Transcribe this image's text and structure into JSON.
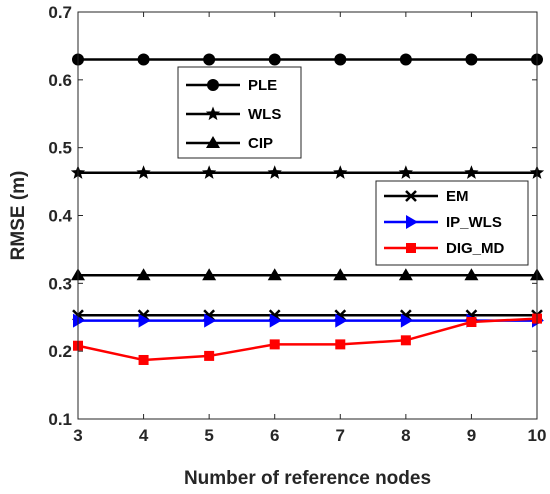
{
  "chart_data": {
    "type": "line",
    "xlabel": "Number of reference nodes",
    "ylabel": "RMSE (m)",
    "xlim": [
      3,
      10
    ],
    "ylim": [
      0.1,
      0.7
    ],
    "x_ticks": [
      "3",
      "4",
      "5",
      "6",
      "7",
      "8",
      "9",
      "10"
    ],
    "y_ticks": [
      "0.1",
      "0.2",
      "0.3",
      "0.4",
      "0.5",
      "0.6",
      "0.7"
    ],
    "grid": false,
    "x": [
      3,
      4,
      5,
      6,
      7,
      8,
      9,
      10
    ],
    "legends": [
      {
        "placement": "top-left",
        "entries": [
          "PLE",
          "WLS",
          "CIP"
        ]
      },
      {
        "placement": "right",
        "entries": [
          "EM",
          "IP_WLS",
          "DIG_MD"
        ]
      }
    ],
    "series": [
      {
        "name": "PLE",
        "color": "#000000",
        "marker": "circle",
        "values": [
          0.63,
          0.63,
          0.63,
          0.63,
          0.63,
          0.63,
          0.63,
          0.63
        ]
      },
      {
        "name": "WLS",
        "color": "#000000",
        "marker": "star",
        "values": [
          0.463,
          0.463,
          0.463,
          0.463,
          0.463,
          0.463,
          0.463,
          0.463
        ]
      },
      {
        "name": "CIP",
        "color": "#000000",
        "marker": "triangle",
        "values": [
          0.312,
          0.312,
          0.312,
          0.312,
          0.312,
          0.312,
          0.312,
          0.312
        ]
      },
      {
        "name": "EM",
        "color": "#000000",
        "marker": "x",
        "values": [
          0.253,
          0.253,
          0.253,
          0.253,
          0.253,
          0.253,
          0.253,
          0.253
        ]
      },
      {
        "name": "IP_WLS",
        "color": "#0000ff",
        "marker": "triangle-right",
        "values": [
          0.245,
          0.245,
          0.245,
          0.245,
          0.245,
          0.245,
          0.245,
          0.245
        ]
      },
      {
        "name": "DIG_MD",
        "color": "#ff0000",
        "marker": "square",
        "values": [
          0.208,
          0.187,
          0.193,
          0.21,
          0.21,
          0.216,
          0.243,
          0.248
        ]
      }
    ]
  }
}
